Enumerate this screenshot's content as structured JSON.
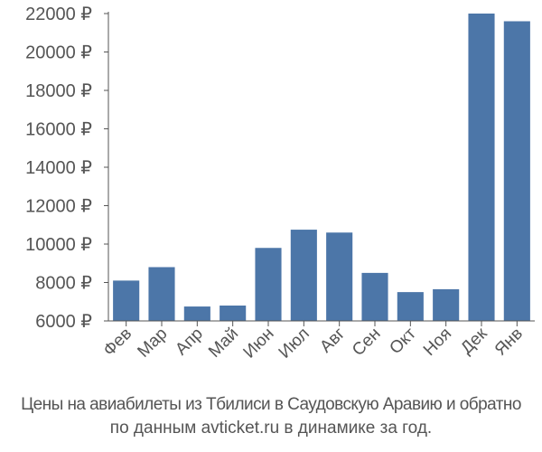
{
  "chart_data": {
    "type": "bar",
    "categories": [
      "Фев",
      "Мар",
      "Апр",
      "Май",
      "Июн",
      "Июл",
      "Авг",
      "Сен",
      "Окт",
      "Ноя",
      "Дек",
      "Янв"
    ],
    "values": [
      8100,
      8800,
      6750,
      6800,
      9800,
      10750,
      10600,
      8500,
      7500,
      7650,
      22000,
      21600
    ],
    "yticks": [
      "6000 ₽",
      "8000 ₽",
      "10000 ₽",
      "12000 ₽",
      "14000 ₽",
      "16000 ₽",
      "18000 ₽",
      "20000 ₽",
      "22000 ₽"
    ],
    "ytick_values": [
      6000,
      8000,
      10000,
      12000,
      14000,
      16000,
      18000,
      20000,
      22000
    ],
    "ylim": [
      6000,
      22000
    ],
    "grid": false,
    "bar_color": "#4c76a8",
    "axis_color": "#555555"
  },
  "caption": {
    "line1": "Цены на авиабилеты из Тбилиси в Саудовскую Аравию и обратно",
    "line2": "по данным avticket.ru в динамике за год."
  }
}
